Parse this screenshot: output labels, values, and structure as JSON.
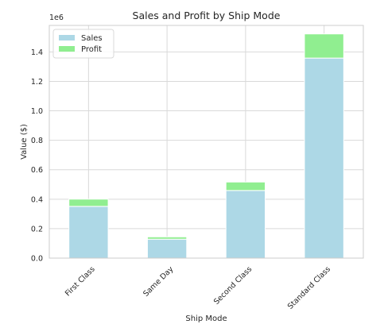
{
  "chart_data": {
    "type": "bar",
    "stacked": true,
    "title": "Sales and Profit by Ship Mode",
    "xlabel": "Ship Mode",
    "ylabel": "Value ($)",
    "y_offset_label": "1e6",
    "categories": [
      "First Class",
      "Same Day",
      "Second Class",
      "Standard Class"
    ],
    "series": [
      {
        "name": "Sales",
        "color": "#add8e6",
        "values": [
          351428,
          128363,
          459194,
          1358216
        ]
      },
      {
        "name": "Profit",
        "color": "#90ee90",
        "values": [
          48970,
          15892,
          57447,
          164089
        ]
      }
    ],
    "ylim": [
      0,
      1580000
    ],
    "yticks": [
      0,
      200000,
      400000,
      600000,
      800000,
      1000000,
      1200000,
      1400000
    ],
    "ytick_labels": [
      "0.0",
      "0.2",
      "0.4",
      "0.6",
      "0.8",
      "1.0",
      "1.2",
      "1.4"
    ],
    "grid": true,
    "legend_position": "top-left"
  }
}
